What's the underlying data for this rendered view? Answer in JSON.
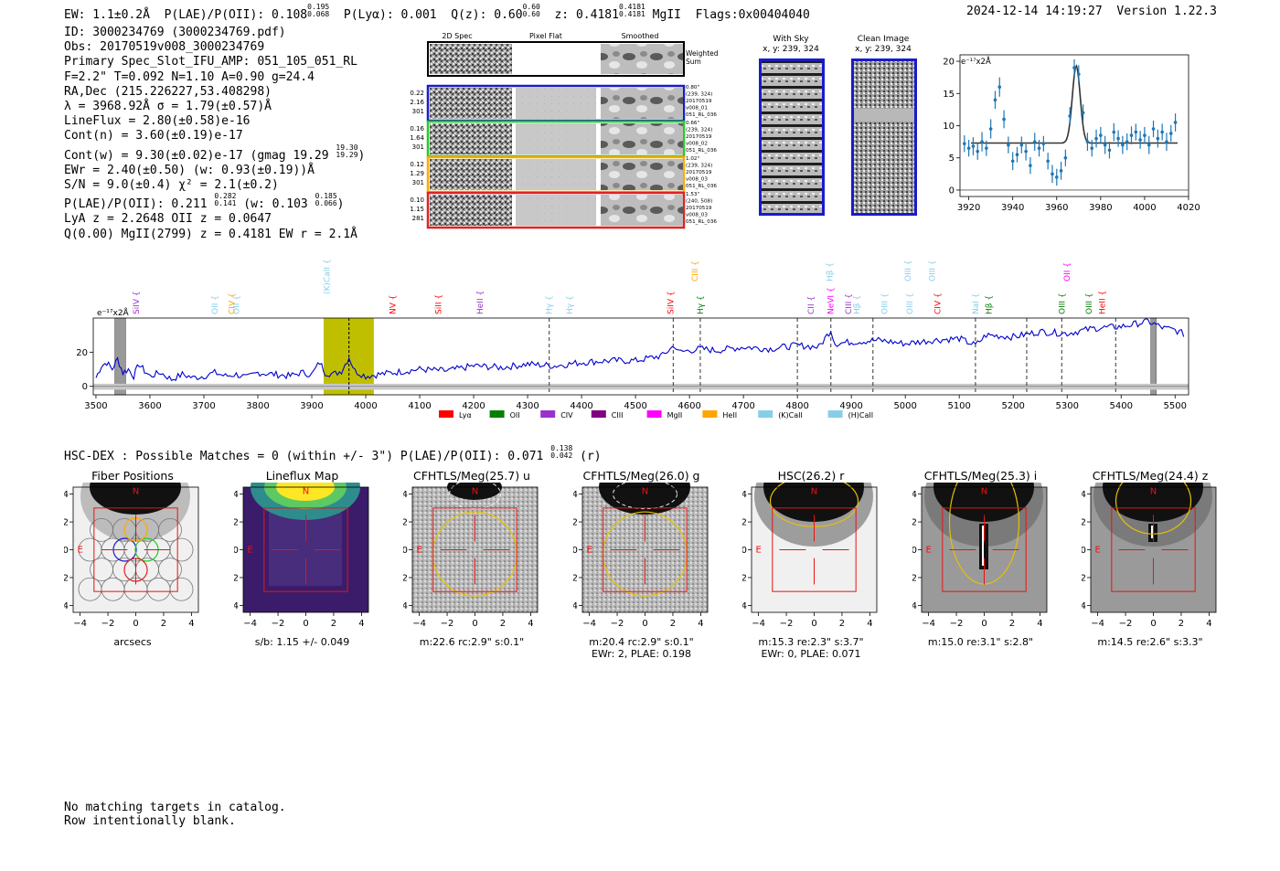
{
  "header": {
    "ew": "EW: 1.1±0.2Å",
    "plae_label": "P(LAE)/P(OII): 0.108",
    "plae_hi": "0.195",
    "plae_lo": "0.068",
    "plya": "P(Lyα): 0.001",
    "qz_label": "Q(z): 0.60",
    "qz_hi": "0.60",
    "qz_lo": "0.60",
    "z_label": "z: 0.4181",
    "z_hi": "0.4181",
    "z_lo": "0.4181",
    "line": "MgII",
    "flags": "Flags:0x00404040",
    "timestamp": "2024-12-14 14:19:27",
    "version": "Version 1.22.3"
  },
  "info": {
    "id": "ID: 3000234769 (3000234769.pdf)",
    "obs": "Obs: 20170519v008_3000234769",
    "primary": "Primary Spec_Slot_IFU_AMP: 051_105_051_RL",
    "fiber": "F=2.2\"  T=0.092  N=1.10  A=0.90  g=24.4",
    "radec": "RA,Dec (215.226227,53.408298)",
    "lambda": "λ = 3968.92Å  σ = 1.79(±0.57)Å",
    "lineflux": "LineFlux = 2.80(±0.58)e-16",
    "contn": "Cont(n) = 3.60(±0.19)e-17",
    "contw": "Cont(w) = 9.30(±0.02)e-17 (gmag 19.29",
    "contw_hi": "19.30",
    "contw_lo": "19.29",
    "contw_end": ")",
    "ewr": "EWr = 2.40(±0.50) (w: 0.93(±0.19))Å",
    "sn": "S/N = 9.0(±0.4)  χ² = 2.1(±0.2)",
    "plae2": "P(LAE)/P(OII): 0.211",
    "plae2_hi": "0.282",
    "plae2_lo": "0.141",
    "plae2_w": "(w: 0.103",
    "plae2_w_hi": "0.185",
    "plae2_w_lo": "0.066",
    "plae2_end": ")",
    "lya": "LyA z = 2.2648  OII z = 0.0647",
    "q": "Q(0.00) MgII(2799) z = 0.4181  EW r = 2.1Å"
  },
  "fiber_grid": {
    "col_headers": [
      "2D Spec",
      "Pixel Flat",
      "Smoothed"
    ],
    "weighted": [
      "Weighted",
      "Sum"
    ],
    "rows": [
      {
        "left": [
          "0.22",
          "2.16",
          "301"
        ],
        "right": [
          "0.80\"",
          "(239, 324)",
          "20170519",
          "v008_01",
          "051_RL_036"
        ],
        "color": "#1a1acc"
      },
      {
        "left": [
          "0.16",
          "1.64",
          "301"
        ],
        "right": [
          "0.66\"",
          "(239, 324)",
          "20170519",
          "v008_02",
          "051_RL_036"
        ],
        "color": "#22cc22"
      },
      {
        "left": [
          "0.12",
          "1.29",
          "301"
        ],
        "right": [
          "1.02\"",
          "(239, 324)",
          "20170519",
          "v008_03",
          "051_RL_036"
        ],
        "color": "#ffaa00"
      },
      {
        "left": [
          "0.10",
          "1.15",
          "281"
        ],
        "right": [
          "1.53\"",
          "(240, 508)",
          "20170519",
          "v008_03",
          "051_RL_036"
        ],
        "color": "#dd2222"
      }
    ]
  },
  "sky_panels": {
    "with_sky": [
      "With Sky",
      "x, y: 239, 324"
    ],
    "clean": [
      "Clean Image",
      "x, y: 239, 324"
    ]
  },
  "zoom_chart": {
    "type": "scatter",
    "ylabel": "e⁻¹⁷x2Å",
    "xlim": [
      3916,
      4020
    ],
    "ylim": [
      -1,
      21
    ],
    "xticks": [
      3920,
      3940,
      3960,
      3980,
      4000,
      4020
    ],
    "yticks": [
      0,
      5,
      10,
      15,
      20
    ],
    "points": [
      [
        3918,
        7.2,
        1.3
      ],
      [
        3920,
        6.5,
        1.3
      ],
      [
        3922,
        6.8,
        1.4
      ],
      [
        3924,
        6.0,
        1.3
      ],
      [
        3926,
        7.5,
        1.5
      ],
      [
        3928,
        6.5,
        1.2
      ],
      [
        3930,
        9.5,
        1.5
      ],
      [
        3932,
        14.0,
        1.4
      ],
      [
        3934,
        16.0,
        1.5
      ],
      [
        3936,
        11.0,
        1.4
      ],
      [
        3938,
        7.0,
        1.3
      ],
      [
        3940,
        4.5,
        1.4
      ],
      [
        3942,
        5.5,
        1.2
      ],
      [
        3944,
        7.0,
        1.3
      ],
      [
        3946,
        6.0,
        1.4
      ],
      [
        3948,
        3.8,
        1.3
      ],
      [
        3950,
        7.5,
        1.4
      ],
      [
        3952,
        6.5,
        1.3
      ],
      [
        3954,
        7.2,
        1.2
      ],
      [
        3956,
        4.5,
        1.3
      ],
      [
        3958,
        2.5,
        1.4
      ],
      [
        3960,
        2.0,
        1.3
      ],
      [
        3962,
        3.0,
        1.4
      ],
      [
        3964,
        5.0,
        1.3
      ],
      [
        3966,
        11.5,
        1.4
      ],
      [
        3968,
        19.0,
        1.3
      ],
      [
        3970,
        18.0,
        1.4
      ],
      [
        3972,
        12.0,
        1.3
      ],
      [
        3974,
        7.5,
        1.4
      ],
      [
        3976,
        6.5,
        1.3
      ],
      [
        3978,
        8.0,
        1.4
      ],
      [
        3980,
        8.5,
        1.3
      ],
      [
        3982,
        7.0,
        1.4
      ],
      [
        3984,
        6.2,
        1.3
      ],
      [
        3986,
        9.0,
        1.4
      ],
      [
        3988,
        8.0,
        1.3
      ],
      [
        3990,
        7.0,
        1.4
      ],
      [
        3992,
        7.5,
        1.3
      ],
      [
        3994,
        8.5,
        1.4
      ],
      [
        3996,
        9.0,
        1.3
      ],
      [
        3998,
        7.8,
        1.4
      ],
      [
        4000,
        8.5,
        1.3
      ],
      [
        4002,
        7.0,
        1.4
      ],
      [
        4004,
        9.5,
        1.3
      ],
      [
        4006,
        8.0,
        1.4
      ],
      [
        4008,
        9.0,
        1.3
      ],
      [
        4010,
        7.5,
        1.4
      ],
      [
        4012,
        8.8,
        1.3
      ],
      [
        4014,
        10.5,
        1.4
      ]
    ],
    "model": {
      "continuum": 7.3,
      "peak": 19.3,
      "center": 3968.9,
      "sigma": 1.79,
      "fit_range": [
        3921,
        4015
      ]
    }
  },
  "spectrum_chart": {
    "type": "line",
    "ylabel": "e⁻¹⁷x2Å",
    "xlim": [
      3495,
      5525
    ],
    "ylim": [
      -5,
      40
    ],
    "xticks": [
      3500,
      3600,
      3700,
      3800,
      3900,
      4000,
      4100,
      4200,
      4300,
      4400,
      4500,
      4600,
      4700,
      4800,
      4900,
      5000,
      5100,
      5200,
      5300,
      5400,
      5500
    ],
    "yticks": [
      0,
      20
    ],
    "anchors": [
      [
        3500,
        5
      ],
      [
        3510,
        12
      ],
      [
        3520,
        14
      ],
      [
        3530,
        10
      ],
      [
        3540,
        16
      ],
      [
        3550,
        8
      ],
      [
        3560,
        10
      ],
      [
        3570,
        6
      ],
      [
        3580,
        13
      ],
      [
        3590,
        9
      ],
      [
        3600,
        6
      ],
      [
        3620,
        8
      ],
      [
        3640,
        4
      ],
      [
        3660,
        7
      ],
      [
        3680,
        5
      ],
      [
        3700,
        6
      ],
      [
        3720,
        8
      ],
      [
        3740,
        6
      ],
      [
        3760,
        7
      ],
      [
        3780,
        5
      ],
      [
        3800,
        8
      ],
      [
        3830,
        7
      ],
      [
        3860,
        6
      ],
      [
        3880,
        8
      ],
      [
        3900,
        7
      ],
      [
        3915,
        14
      ],
      [
        3925,
        8
      ],
      [
        3940,
        7
      ],
      [
        3955,
        9
      ],
      [
        3969,
        17
      ],
      [
        3980,
        9
      ],
      [
        4000,
        6
      ],
      [
        4050,
        8
      ],
      [
        4100,
        10
      ],
      [
        4150,
        9
      ],
      [
        4200,
        12
      ],
      [
        4250,
        11
      ],
      [
        4300,
        13
      ],
      [
        4350,
        12
      ],
      [
        4400,
        14
      ],
      [
        4450,
        15
      ],
      [
        4500,
        15
      ],
      [
        4550,
        18
      ],
      [
        4572,
        24
      ],
      [
        4580,
        20
      ],
      [
        4620,
        22
      ],
      [
        4650,
        21
      ],
      [
        4700,
        23
      ],
      [
        4750,
        22
      ],
      [
        4800,
        24
      ],
      [
        4840,
        23
      ],
      [
        4862,
        33
      ],
      [
        4870,
        25
      ],
      [
        4900,
        26
      ],
      [
        4950,
        27
      ],
      [
        5000,
        25
      ],
      [
        5050,
        27
      ],
      [
        5100,
        28
      ],
      [
        5130,
        24
      ],
      [
        5150,
        30
      ],
      [
        5200,
        29
      ],
      [
        5250,
        32
      ],
      [
        5300,
        31
      ],
      [
        5350,
        34
      ],
      [
        5400,
        35
      ],
      [
        5450,
        38
      ],
      [
        5480,
        34
      ],
      [
        5500,
        33
      ],
      [
        5520,
        30
      ]
    ],
    "highlight_band": [
      3922,
      4015
    ],
    "detected_line": 3968.9,
    "masked_regions": [
      [
        3535,
        3555
      ],
      [
        5455,
        5465
      ]
    ],
    "dashed_lines": [
      4340,
      4570,
      4620,
      4800,
      4862,
      4940,
      5130,
      5225,
      5290,
      5390
    ],
    "line_labels": [
      {
        "name": "SiIV",
        "w": 3575,
        "row": 3,
        "color": "#9932cc"
      },
      {
        "name": "OII",
        "w": 3720,
        "row": 3,
        "color": "#87ceeb"
      },
      {
        "name": "CIV",
        "w": 3752,
        "row": 3,
        "color": "#ffa500"
      },
      {
        "name": "OII",
        "w": 3760,
        "row": 3,
        "color": "#87ceeb"
      },
      {
        "name": "(K)CaII",
        "w": 3928,
        "row": 2,
        "color": "#87ceeb"
      },
      {
        "name": "NV",
        "w": 4050,
        "row": 3,
        "color": "#ff0000"
      },
      {
        "name": "SiII",
        "w": 4135,
        "row": 3,
        "color": "#ff0000"
      },
      {
        "name": "HeII",
        "w": 4212,
        "row": 3,
        "color": "#9932cc"
      },
      {
        "name": "Hγ",
        "w": 4340,
        "row": 3,
        "color": "#87ceeb"
      },
      {
        "name": "Hγ",
        "w": 4378,
        "row": 3,
        "color": "#87ceeb"
      },
      {
        "name": "SiIV",
        "w": 4565,
        "row": 3,
        "color": "#ff0000"
      },
      {
        "name": "CIII",
        "w": 4610,
        "row": 1,
        "color": "#ffa500"
      },
      {
        "name": "Hγ",
        "w": 4620,
        "row": 3,
        "color": "#008000"
      },
      {
        "name": "CII",
        "w": 4825,
        "row": 3,
        "color": "#9932cc"
      },
      {
        "name": "Hβ",
        "w": 4860,
        "row": 1,
        "color": "#87ceeb"
      },
      {
        "name": "NeVI",
        "w": 4862,
        "row": 3,
        "color": "#ff00ff"
      },
      {
        "name": "CIII",
        "w": 4895,
        "row": 3,
        "color": "#9932cc"
      },
      {
        "name": "Hβ",
        "w": 4910,
        "row": 3,
        "color": "#87ceeb"
      },
      {
        "name": "OIII",
        "w": 4962,
        "row": 3,
        "color": "#87ceeb"
      },
      {
        "name": "OIII",
        "w": 5005,
        "row": 1,
        "color": "#87ceeb"
      },
      {
        "name": "OIII",
        "w": 5008,
        "row": 3,
        "color": "#87ceeb"
      },
      {
        "name": "CIV",
        "w": 5060,
        "row": 3,
        "color": "#ff0000"
      },
      {
        "name": "OIII",
        "w": 5050,
        "row": 1,
        "color": "#87ceeb"
      },
      {
        "name": "NaI",
        "w": 5130,
        "row": 3,
        "color": "#87ceeb"
      },
      {
        "name": "Hβ",
        "w": 5155,
        "row": 3,
        "color": "#008000"
      },
      {
        "name": "OIII",
        "w": 5290,
        "row": 3,
        "color": "#008000"
      },
      {
        "name": "OII",
        "w": 5300,
        "row": 1,
        "color": "#ff00ff"
      },
      {
        "name": "OIII",
        "w": 5340,
        "row": 3,
        "color": "#008000"
      },
      {
        "name": "HeII",
        "w": 5365,
        "row": 3,
        "color": "#ff0000"
      }
    ],
    "legend": [
      {
        "name": "Lyα",
        "color": "#ff0000"
      },
      {
        "name": "OII",
        "color": "#008000"
      },
      {
        "name": "CIV",
        "color": "#9932cc"
      },
      {
        "name": "CIII",
        "color": "#800080"
      },
      {
        "name": "MgII",
        "color": "#ff00ff"
      },
      {
        "name": "HeII",
        "color": "#ffa500"
      },
      {
        "name": "(K)CaII",
        "color": "#87ceeb"
      },
      {
        "name": "(H)CaII",
        "color": "#87ceeb"
      }
    ]
  },
  "chart_data": [
    {
      "type": "line",
      "title": "",
      "xlabel": "",
      "ylabel": "e⁻¹⁷x2Å",
      "xlim": [
        3495,
        5525
      ],
      "ylim": [
        -5,
        40
      ],
      "grid": false,
      "note_ref": "spectrum_chart"
    },
    {
      "type": "scatter",
      "title": "",
      "xlabel": "",
      "ylabel": "e⁻¹⁷x2Å",
      "xlim": [
        3916,
        4020
      ],
      "ylim": [
        -1,
        21
      ],
      "grid": false,
      "note_ref": "zoom_chart"
    }
  ],
  "hsc": {
    "title": "HSC-DEX : Possible Matches = 0 (within +/- 3\")  P(LAE)/P(OII): 0.071",
    "hi": "0.138",
    "lo": "0.042",
    "end": "(r)"
  },
  "cutouts": [
    {
      "title": "Fiber Positions",
      "cap1": "arcsecs",
      "cap2": ""
    },
    {
      "title": "Lineflux Map",
      "cap1": "s/b: 1.15 +/- 0.049",
      "cap2": ""
    },
    {
      "title": "CFHTLS/Meg(25.7) u",
      "cap1": "m:22.6 rc:2.9\"  s:0.1\"",
      "cap2": ""
    },
    {
      "title": "CFHTLS/Meg(26.0) g",
      "cap1": "m:20.4 rc:2.9\"  s:0.1\"",
      "cap2": "EWr: 2, PLAE: 0.198"
    },
    {
      "title": "HSC(26.2) r",
      "cap1": "m:15.3  re:2.3\"  s:3.7\"",
      "cap2": "EWr: 0, PLAE: 0.071"
    },
    {
      "title": "CFHTLS/Meg(25.3) i",
      "cap1": "m:15.0  re:3.1\"  s:2.8\"",
      "cap2": ""
    },
    {
      "title": "CFHTLS/Meg(24.4) z",
      "cap1": "m:14.5  re:2.6\"  s:3.3\"",
      "cap2": ""
    }
  ],
  "cutout_axes": {
    "ticks": [
      "−4",
      "−2",
      "0",
      "2",
      "4"
    ],
    "compass_n": "N",
    "compass_e": "E"
  },
  "footer": {
    "line1": "No matching targets in catalog.",
    "line2": "Row intentionally blank."
  }
}
